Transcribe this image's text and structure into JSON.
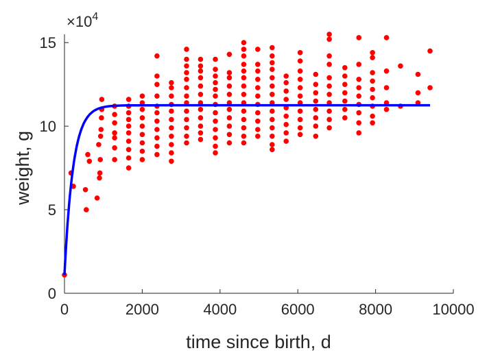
{
  "chart_data": {
    "type": "scatter",
    "title": "",
    "xlabel": "time since birth, d",
    "ylabel": "weight, g",
    "y_multiplier_label": "×10",
    "y_multiplier_exp": "4",
    "xlim": [
      0,
      10000
    ],
    "ylim": [
      0,
      15.5
    ],
    "y_scale_factor": 10000,
    "xticks": [
      0,
      2000,
      4000,
      6000,
      8000,
      10000
    ],
    "xtick_labels": [
      "0",
      "2000",
      "4000",
      "6000",
      "8000",
      "10000"
    ],
    "yticks": [
      0,
      5,
      10,
      15
    ],
    "ytick_labels": [
      "0",
      "5",
      "10",
      "15"
    ],
    "grid": false,
    "legend": "none",
    "colors": {
      "points": "#ff0000",
      "fit": "#0000ff",
      "axes": "#262626"
    },
    "series": [
      {
        "type": "scatter",
        "points": [
          [
            0,
            1.1
          ],
          [
            170,
            7.2
          ],
          [
            230,
            6.4
          ],
          [
            540,
            6.2
          ],
          [
            560,
            5.0
          ],
          [
            600,
            8.3
          ],
          [
            640,
            7.9
          ],
          [
            840,
            5.7
          ],
          [
            880,
            8.9
          ],
          [
            900,
            6.9
          ],
          [
            910,
            7.2
          ],
          [
            920,
            8.0
          ],
          [
            930,
            9.4
          ],
          [
            940,
            9.8
          ],
          [
            950,
            10.5
          ],
          [
            960,
            11.0
          ],
          [
            960,
            11.6
          ],
          [
            1290,
            8.0
          ],
          [
            1290,
            8.7
          ],
          [
            1290,
            9.3
          ],
          [
            1290,
            9.6
          ],
          [
            1290,
            10.2
          ],
          [
            1290,
            10.7
          ],
          [
            1290,
            11.2
          ],
          [
            1650,
            7.5
          ],
          [
            1650,
            8.1
          ],
          [
            1650,
            8.6
          ],
          [
            1650,
            9.1
          ],
          [
            1650,
            9.6
          ],
          [
            1650,
            10.0
          ],
          [
            1650,
            10.4
          ],
          [
            1650,
            10.8
          ],
          [
            1650,
            11.2
          ],
          [
            1650,
            11.6
          ],
          [
            2000,
            8.0
          ],
          [
            2000,
            8.5
          ],
          [
            2000,
            9.0
          ],
          [
            2000,
            9.5
          ],
          [
            2000,
            10.0
          ],
          [
            2000,
            10.5
          ],
          [
            2000,
            11.0
          ],
          [
            2000,
            11.4
          ],
          [
            2000,
            11.8
          ],
          [
            2380,
            8.3
          ],
          [
            2380,
            8.8
          ],
          [
            2380,
            9.3
          ],
          [
            2380,
            9.8
          ],
          [
            2380,
            10.3
          ],
          [
            2380,
            10.8
          ],
          [
            2380,
            11.2
          ],
          [
            2380,
            11.8
          ],
          [
            2380,
            12.5
          ],
          [
            2380,
            13.0
          ],
          [
            2380,
            14.2
          ],
          [
            2750,
            7.9
          ],
          [
            2750,
            8.4
          ],
          [
            2750,
            8.9
          ],
          [
            2750,
            9.4
          ],
          [
            2750,
            9.9
          ],
          [
            2750,
            10.4
          ],
          [
            2750,
            10.9
          ],
          [
            2750,
            11.3
          ],
          [
            2750,
            11.8
          ],
          [
            2750,
            12.3
          ],
          [
            2750,
            12.6
          ],
          [
            3140,
            9.0
          ],
          [
            3140,
            9.4
          ],
          [
            3140,
            9.9
          ],
          [
            3140,
            10.4
          ],
          [
            3140,
            10.9
          ],
          [
            3140,
            11.4
          ],
          [
            3140,
            11.8
          ],
          [
            3140,
            12.3
          ],
          [
            3140,
            12.8
          ],
          [
            3140,
            13.2
          ],
          [
            3140,
            13.6
          ],
          [
            3140,
            14.0
          ],
          [
            3140,
            14.6
          ],
          [
            3500,
            9.2
          ],
          [
            3500,
            9.6
          ],
          [
            3500,
            10.0
          ],
          [
            3500,
            10.5
          ],
          [
            3500,
            11.0
          ],
          [
            3500,
            11.4
          ],
          [
            3500,
            11.9
          ],
          [
            3500,
            12.4
          ],
          [
            3500,
            12.9
          ],
          [
            3500,
            13.3
          ],
          [
            3500,
            13.6
          ],
          [
            3500,
            14.0
          ],
          [
            3880,
            8.4
          ],
          [
            3880,
            8.8
          ],
          [
            3880,
            9.3
          ],
          [
            3880,
            9.8
          ],
          [
            3880,
            10.3
          ],
          [
            3880,
            10.8
          ],
          [
            3880,
            11.3
          ],
          [
            3880,
            11.8
          ],
          [
            3880,
            12.2
          ],
          [
            3880,
            12.6
          ],
          [
            3880,
            13.0
          ],
          [
            3880,
            13.4
          ],
          [
            3880,
            14.0
          ],
          [
            4240,
            9.0
          ],
          [
            4240,
            9.5
          ],
          [
            4240,
            10.0
          ],
          [
            4240,
            10.5
          ],
          [
            4240,
            11.0
          ],
          [
            4240,
            11.4
          ],
          [
            4240,
            11.9
          ],
          [
            4240,
            12.4
          ],
          [
            4240,
            12.9
          ],
          [
            4240,
            13.2
          ],
          [
            4240,
            14.3
          ],
          [
            4610,
            9.0
          ],
          [
            4610,
            9.4
          ],
          [
            4610,
            9.9
          ],
          [
            4610,
            10.4
          ],
          [
            4610,
            10.9
          ],
          [
            4610,
            11.4
          ],
          [
            4610,
            11.9
          ],
          [
            4610,
            12.4
          ],
          [
            4610,
            12.9
          ],
          [
            4610,
            13.3
          ],
          [
            4610,
            13.7
          ],
          [
            4610,
            14.2
          ],
          [
            4610,
            14.6
          ],
          [
            4610,
            15.0
          ],
          [
            4970,
            9.4
          ],
          [
            4970,
            9.8
          ],
          [
            4970,
            10.3
          ],
          [
            4970,
            10.8
          ],
          [
            4970,
            11.3
          ],
          [
            4970,
            11.8
          ],
          [
            4970,
            12.3
          ],
          [
            4970,
            12.8
          ],
          [
            4970,
            13.3
          ],
          [
            4970,
            13.7
          ],
          [
            4970,
            14.6
          ],
          [
            5340,
            8.6
          ],
          [
            5340,
            8.9
          ],
          [
            5340,
            9.4
          ],
          [
            5340,
            9.9
          ],
          [
            5340,
            10.4
          ],
          [
            5340,
            10.9
          ],
          [
            5340,
            11.4
          ],
          [
            5340,
            11.9
          ],
          [
            5340,
            12.4
          ],
          [
            5340,
            12.9
          ],
          [
            5340,
            13.4
          ],
          [
            5340,
            13.8
          ],
          [
            5340,
            14.2
          ],
          [
            5340,
            14.7
          ],
          [
            5700,
            9.1
          ],
          [
            5700,
            9.6
          ],
          [
            5700,
            10.1
          ],
          [
            5700,
            10.6
          ],
          [
            5700,
            11.1
          ],
          [
            5700,
            11.6
          ],
          [
            5700,
            12.1
          ],
          [
            5700,
            12.6
          ],
          [
            5700,
            13.0
          ],
          [
            6060,
            9.5
          ],
          [
            6060,
            9.9
          ],
          [
            6060,
            10.4
          ],
          [
            6060,
            10.9
          ],
          [
            6060,
            11.4
          ],
          [
            6060,
            11.8
          ],
          [
            6060,
            12.3
          ],
          [
            6060,
            12.8
          ],
          [
            6060,
            13.3
          ],
          [
            6060,
            13.9
          ],
          [
            6060,
            14.4
          ],
          [
            6460,
            9.4
          ],
          [
            6460,
            10.0
          ],
          [
            6460,
            10.5
          ],
          [
            6460,
            11.0
          ],
          [
            6460,
            11.5
          ],
          [
            6460,
            12.0
          ],
          [
            6460,
            12.5
          ],
          [
            6460,
            13.1
          ],
          [
            6810,
            9.9
          ],
          [
            6810,
            10.4
          ],
          [
            6810,
            10.9
          ],
          [
            6810,
            11.4
          ],
          [
            6810,
            11.9
          ],
          [
            6810,
            12.4
          ],
          [
            6810,
            12.9
          ],
          [
            6810,
            13.7
          ],
          [
            6810,
            14.2
          ],
          [
            6810,
            15.2
          ],
          [
            6810,
            15.5
          ],
          [
            7210,
            10.5
          ],
          [
            7210,
            11.0
          ],
          [
            7210,
            11.5
          ],
          [
            7210,
            12.0
          ],
          [
            7210,
            12.5
          ],
          [
            7210,
            13.0
          ],
          [
            7210,
            13.5
          ],
          [
            7570,
            9.6
          ],
          [
            7570,
            10.2
          ],
          [
            7570,
            10.8
          ],
          [
            7570,
            11.3
          ],
          [
            7570,
            11.8
          ],
          [
            7570,
            12.3
          ],
          [
            7570,
            12.8
          ],
          [
            7570,
            13.7
          ],
          [
            7570,
            15.3
          ],
          [
            7920,
            10.2
          ],
          [
            7920,
            10.6
          ],
          [
            7920,
            11.2
          ],
          [
            7920,
            11.7
          ],
          [
            7920,
            12.2
          ],
          [
            7920,
            12.7
          ],
          [
            7920,
            13.2
          ],
          [
            7920,
            14.1
          ],
          [
            7920,
            14.4
          ],
          [
            8280,
            11.0
          ],
          [
            8280,
            11.4
          ],
          [
            8280,
            12.3
          ],
          [
            8280,
            13.3
          ],
          [
            8280,
            15.3
          ],
          [
            8640,
            11.2
          ],
          [
            8640,
            13.6
          ],
          [
            9090,
            11.4
          ],
          [
            9090,
            12.0
          ],
          [
            9090,
            13.1
          ],
          [
            9400,
            12.3
          ],
          [
            9400,
            14.5
          ]
        ]
      },
      {
        "type": "line",
        "curve": "von_bertalanffy",
        "x_start": 0,
        "x_end": 9400,
        "y_start": 1.1,
        "y_inf": 11.25,
        "k_per_day": 0.0045
      }
    ]
  }
}
